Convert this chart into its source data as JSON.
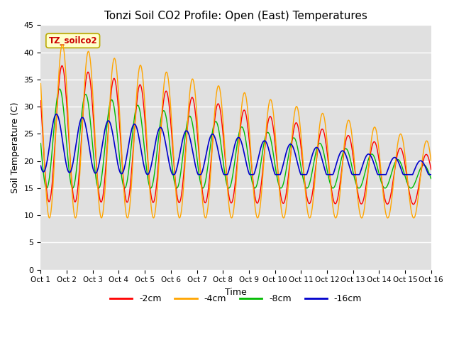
{
  "title": "Tonzi Soil CO2 Profile: Open (East) Temperatures",
  "xlabel": "Time",
  "ylabel": "Soil Temperature (C)",
  "legend_label": "TZ_soilco2",
  "ylim": [
    0,
    45
  ],
  "xlim_start": 0,
  "xlim_end": 15,
  "xtick_labels": [
    "Oct 1",
    "Oct 2",
    "Oct 3",
    "Oct 4",
    "Oct 5",
    "Oct 6",
    "Oct 7",
    "Oct 8",
    "Oct 9",
    "Oct 10",
    "Oct 11",
    "Oct 12",
    "Oct 13",
    "Oct 14",
    "Oct 15",
    "Oct 16"
  ],
  "ytick_values": [
    0,
    5,
    10,
    15,
    20,
    25,
    30,
    35,
    40,
    45
  ],
  "colors": {
    "2cm": "#ff0000",
    "4cm": "#ffa500",
    "8cm": "#00bb00",
    "16cm": "#0000cc"
  },
  "line_labels": [
    "-2cm",
    "-4cm",
    "-8cm",
    "-16cm"
  ],
  "plot_bg_color": "#e0e0e0",
  "legend_box_color": "#ffffcc",
  "legend_box_edge": "#bbaa00"
}
